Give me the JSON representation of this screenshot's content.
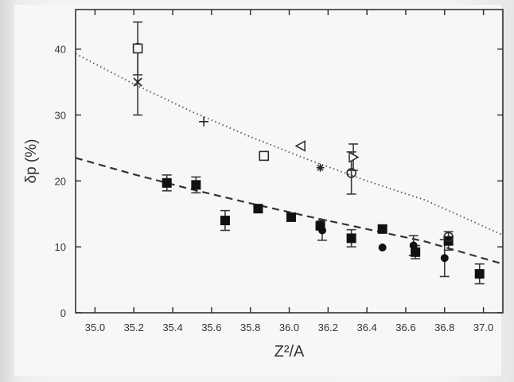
{
  "chart_data": {
    "type": "scatter",
    "xlabel": "Z²/A",
    "ylabel": "δp (%)",
    "xlim": [
      34.9,
      37.1
    ],
    "ylim": [
      0,
      46
    ],
    "x_ticks": [
      35.0,
      35.2,
      35.4,
      35.6,
      35.8,
      36.0,
      36.2,
      36.4,
      36.6,
      36.8,
      37.0
    ],
    "x_tick_labels": [
      "35.0",
      "35.2",
      "35.4",
      "35.6",
      "35.8",
      "36.0",
      "36.2",
      "36.4",
      "36.6",
      "36.8",
      "37.0"
    ],
    "y_ticks": [
      0,
      10,
      20,
      30,
      40
    ],
    "y_tick_labels": [
      "0",
      "10",
      "20",
      "30",
      "40"
    ],
    "grid": false,
    "series": [
      {
        "marker": "filled-square",
        "points": [
          {
            "x": 35.37,
            "y": 19.7,
            "err": 1.2
          },
          {
            "x": 35.52,
            "y": 19.4,
            "err": 1.2
          },
          {
            "x": 35.67,
            "y": 14.0,
            "err": 1.5
          },
          {
            "x": 35.84,
            "y": 15.8,
            "err": 0
          },
          {
            "x": 36.01,
            "y": 14.5,
            "err": 0
          },
          {
            "x": 36.16,
            "y": 13.2,
            "err": 0
          },
          {
            "x": 36.32,
            "y": 11.3,
            "err": 1.3
          },
          {
            "x": 36.48,
            "y": 12.7,
            "err": 0
          },
          {
            "x": 36.65,
            "y": 9.2,
            "err": 1.0
          },
          {
            "x": 36.82,
            "y": 10.9,
            "err": 1.4
          },
          {
            "x": 36.98,
            "y": 5.9,
            "err": 1.5
          }
        ]
      },
      {
        "marker": "filled-circle",
        "points": [
          {
            "x": 36.17,
            "y": 12.5,
            "err": 1.5
          },
          {
            "x": 36.48,
            "y": 9.9,
            "err": 0
          },
          {
            "x": 36.64,
            "y": 10.2,
            "err": 1.5
          },
          {
            "x": 36.8,
            "y": 8.3,
            "err": 2.8
          }
        ]
      },
      {
        "marker": "open-circle",
        "points": [
          {
            "x": 35.22,
            "y": 40.2,
            "err": 0
          },
          {
            "x": 36.32,
            "y": 21.2,
            "err": 3.2
          },
          {
            "x": 36.82,
            "y": 11.5,
            "err": 0
          }
        ]
      },
      {
        "marker": "open-square",
        "points": [
          {
            "x": 35.22,
            "y": 40.1,
            "err": 4.0
          },
          {
            "x": 35.87,
            "y": 23.8,
            "err": 0
          }
        ]
      },
      {
        "marker": "cross",
        "points": [
          {
            "x": 35.22,
            "y": 35.0,
            "err": 5.0
          }
        ]
      },
      {
        "marker": "plus",
        "points": [
          {
            "x": 35.56,
            "y": 29.0,
            "err": 0
          }
        ]
      },
      {
        "marker": "open-triangle-left",
        "points": [
          {
            "x": 36.06,
            "y": 25.3,
            "err": 0
          }
        ]
      },
      {
        "marker": "star",
        "points": [
          {
            "x": 36.16,
            "y": 22.0,
            "err": 0
          }
        ]
      },
      {
        "marker": "open-triangle-right",
        "points": [
          {
            "x": 36.33,
            "y": 23.6,
            "err": 2.0
          }
        ]
      }
    ],
    "fits": [
      {
        "style": "dotted",
        "x": [
          34.9,
          35.2,
          35.5,
          35.8,
          36.1,
          36.4,
          36.7,
          37.1
        ],
        "y": [
          39.3,
          34.7,
          30.5,
          26.7,
          23.2,
          20.0,
          17.1,
          11.8
        ]
      },
      {
        "style": "dashed",
        "x": [
          34.9,
          35.2,
          35.5,
          35.8,
          36.1,
          36.4,
          36.7,
          37.1
        ],
        "y": [
          23.5,
          21.0,
          18.7,
          16.6,
          14.6,
          12.7,
          10.8,
          7.4
        ]
      }
    ]
  }
}
